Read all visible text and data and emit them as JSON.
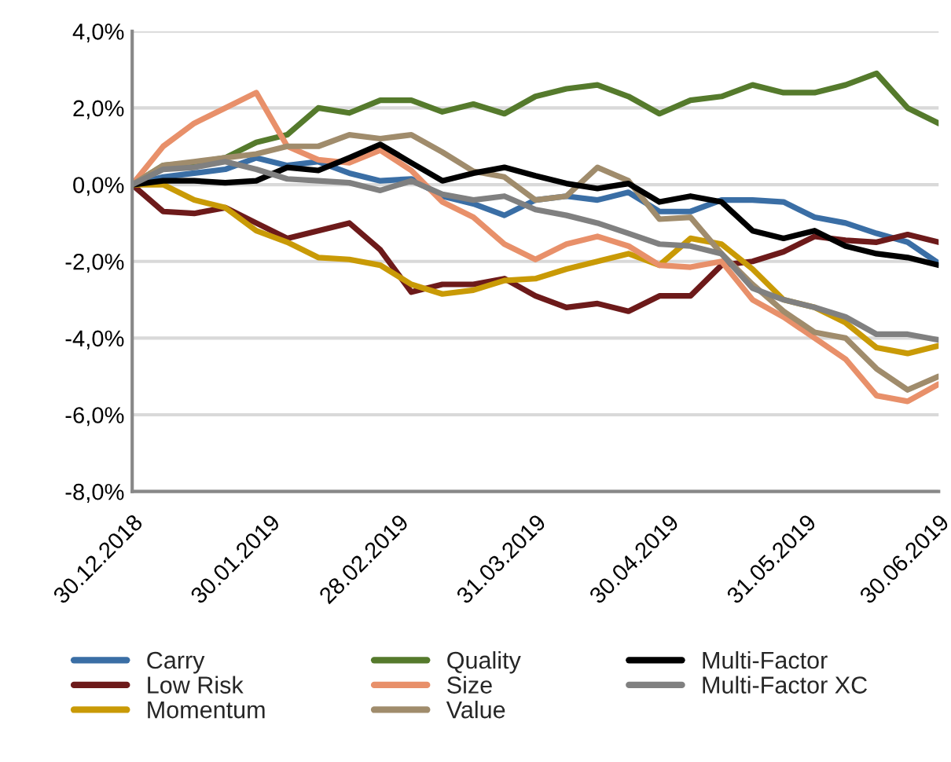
{
  "chart_data": {
    "type": "line",
    "x": [
      "2018-12-30",
      "2019-01-06",
      "2019-01-13",
      "2019-01-20",
      "2019-01-27",
      "2019-02-03",
      "2019-02-10",
      "2019-02-17",
      "2019-02-24",
      "2019-03-03",
      "2019-03-10",
      "2019-03-17",
      "2019-03-24",
      "2019-03-31",
      "2019-04-07",
      "2019-04-14",
      "2019-04-21",
      "2019-04-28",
      "2019-05-05",
      "2019-05-12",
      "2019-05-19",
      "2019-05-26",
      "2019-06-02",
      "2019-06-09",
      "2019-06-16",
      "2019-06-23",
      "2019-06-30"
    ],
    "series": [
      {
        "name": "Carry",
        "color": "#3a6ea5",
        "values": [
          0,
          0.2,
          0.3,
          0.4,
          0.7,
          0.5,
          0.6,
          0.3,
          0.1,
          0.15,
          -0.3,
          -0.5,
          -0.8,
          -0.4,
          -0.3,
          -0.4,
          -0.2,
          -0.7,
          -0.7,
          -0.4,
          -0.4,
          -0.45,
          -0.85,
          -1.0,
          -1.27,
          -1.5,
          -2.05
        ]
      },
      {
        "name": "Low Risk",
        "color": "#6d1a1a",
        "values": [
          0,
          -0.7,
          -0.75,
          -0.6,
          -1.0,
          -1.4,
          -1.2,
          -1.0,
          -1.7,
          -2.8,
          -2.6,
          -2.6,
          -2.45,
          -2.9,
          -3.2,
          -3.1,
          -3.3,
          -2.9,
          -2.9,
          -2.1,
          -2.0,
          -1.75,
          -1.35,
          -1.45,
          -1.5,
          -1.3,
          -1.5
        ]
      },
      {
        "name": "Momentum",
        "color": "#c99a06",
        "values": [
          0,
          0,
          -0.4,
          -0.6,
          -1.2,
          -1.5,
          -1.9,
          -1.95,
          -2.1,
          -2.6,
          -2.85,
          -2.75,
          -2.5,
          -2.45,
          -2.2,
          -2.0,
          -1.8,
          -2.1,
          -1.4,
          -1.55,
          -2.2,
          -3.0,
          -3.2,
          -3.6,
          -4.25,
          -4.4,
          -4.2
        ]
      },
      {
        "name": "Quality",
        "color": "#557a2c",
        "values": [
          0,
          0.5,
          0.57,
          0.7,
          1.1,
          1.3,
          2.0,
          1.87,
          2.2,
          2.2,
          1.9,
          2.1,
          1.85,
          2.3,
          2.5,
          2.6,
          2.3,
          1.85,
          2.2,
          2.3,
          2.6,
          2.4,
          2.4,
          2.6,
          2.9,
          2.0,
          1.6
        ]
      },
      {
        "name": "Size",
        "color": "#e8906a",
        "values": [
          0,
          1.0,
          1.6,
          2.0,
          2.4,
          1.0,
          0.65,
          0.57,
          0.9,
          0.37,
          -0.45,
          -0.85,
          -1.55,
          -1.95,
          -1.55,
          -1.35,
          -1.6,
          -2.1,
          -2.15,
          -2.0,
          -3.0,
          -3.45,
          -4.0,
          -4.55,
          -5.5,
          -5.65,
          -5.2
        ]
      },
      {
        "name": "Value",
        "color": "#a08c6c",
        "values": [
          0,
          0.5,
          0.6,
          0.7,
          0.8,
          1.0,
          1.0,
          1.3,
          1.2,
          1.3,
          0.85,
          0.35,
          0.2,
          -0.4,
          -0.3,
          0.45,
          0.1,
          -0.9,
          -0.85,
          -1.8,
          -2.6,
          -3.3,
          -3.85,
          -4.0,
          -4.8,
          -5.35,
          -5.0
        ]
      },
      {
        "name": "Multi-Factor",
        "color": "#000000",
        "values": [
          0,
          0.1,
          0.1,
          0.05,
          0.1,
          0.45,
          0.37,
          0.7,
          1.05,
          0.57,
          0.1,
          0.3,
          0.45,
          0.23,
          0.03,
          -0.1,
          0.03,
          -0.45,
          -0.3,
          -0.45,
          -1.2,
          -1.4,
          -1.2,
          -1.6,
          -1.8,
          -1.9,
          -2.1
        ]
      },
      {
        "name": "Multi-Factor XC",
        "color": "#808080",
        "values": [
          0,
          0.4,
          0.45,
          0.6,
          0.4,
          0.15,
          0.1,
          0.05,
          -0.15,
          0.1,
          -0.25,
          -0.4,
          -0.3,
          -0.65,
          -0.8,
          -1.0,
          -1.27,
          -1.55,
          -1.6,
          -1.8,
          -2.7,
          -3.0,
          -3.2,
          -3.45,
          -3.9,
          -3.9,
          -4.05
        ]
      }
    ],
    "xlim": [
      "2018-12-30",
      "2019-06-30"
    ],
    "xticks": [
      {
        "value": "2018-12-30",
        "label": "30.12.2018"
      },
      {
        "value": "2019-01-30",
        "label": "30.01.2019"
      },
      {
        "value": "2019-02-28",
        "label": "28.02.2019"
      },
      {
        "value": "2019-03-31",
        "label": "31.03.2019"
      },
      {
        "value": "2019-04-30",
        "label": "30.04.2019"
      },
      {
        "value": "2019-05-31",
        "label": "31.05.2019"
      },
      {
        "value": "2019-06-30",
        "label": "30.06.2019"
      }
    ],
    "ylim": [
      -8,
      4
    ],
    "yticks": [
      {
        "value": 4,
        "label": "4,0%"
      },
      {
        "value": 2,
        "label": "2,0%"
      },
      {
        "value": 0,
        "label": "0,0%"
      },
      {
        "value": -2,
        "label": "-2,0%"
      },
      {
        "value": -4,
        "label": "-4,0%"
      },
      {
        "value": -6,
        "label": "-6,0%"
      },
      {
        "value": -8,
        "label": "-8,0%"
      }
    ],
    "grid": "y",
    "legend": "bottom",
    "line_style": "solid"
  }
}
